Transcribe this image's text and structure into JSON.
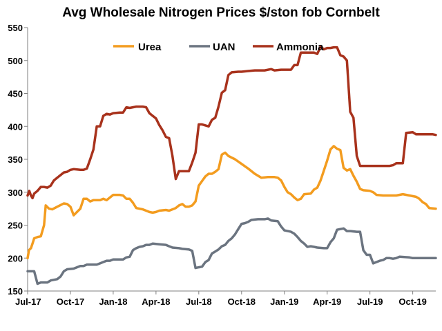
{
  "chart_data": {
    "type": "line",
    "title": "Avg Wholesale Nitrogen Prices $/ston fob Cornbelt",
    "xlabel": "",
    "ylabel": "",
    "ylim": [
      150,
      550
    ],
    "yticks": [
      150,
      200,
      250,
      300,
      350,
      400,
      450,
      500,
      550
    ],
    "xticks": [
      "Jul-17",
      "Oct-17",
      "Jan-18",
      "Apr-18",
      "Jul-18",
      "Oct-18",
      "Jan-19",
      "Apr-19",
      "Jul-19",
      "Oct-19"
    ],
    "grid": false,
    "legend": "top-center",
    "series": [
      {
        "name": "Urea",
        "color": "#f39c1f",
        "points": [
          [
            0,
            200
          ],
          [
            0.4,
            212
          ],
          [
            1,
            215
          ],
          [
            1.5,
            222
          ],
          [
            2,
            230
          ],
          [
            3,
            232
          ],
          [
            4,
            233
          ],
          [
            5,
            250
          ],
          [
            5.5,
            280
          ],
          [
            6.5,
            275
          ],
          [
            7.5,
            274
          ],
          [
            9,
            278
          ],
          [
            11,
            283
          ],
          [
            12,
            282
          ],
          [
            13,
            278
          ],
          [
            14,
            265
          ],
          [
            15,
            270
          ],
          [
            16,
            275
          ],
          [
            17,
            290
          ],
          [
            18,
            290
          ],
          [
            19,
            286
          ],
          [
            20,
            288
          ],
          [
            22,
            288
          ],
          [
            23,
            290
          ],
          [
            24,
            288
          ],
          [
            25,
            292
          ],
          [
            26,
            296
          ],
          [
            28,
            296
          ],
          [
            29,
            295
          ],
          [
            30,
            290
          ],
          [
            31,
            290
          ],
          [
            32,
            284
          ],
          [
            33,
            276
          ],
          [
            35,
            274
          ],
          [
            37,
            270
          ],
          [
            38,
            269
          ],
          [
            39,
            270
          ],
          [
            40,
            272
          ],
          [
            42,
            273
          ],
          [
            43,
            272
          ],
          [
            44,
            274
          ],
          [
            45,
            276
          ],
          [
            46,
            280
          ],
          [
            47,
            282
          ],
          [
            48,
            278
          ],
          [
            49,
            278
          ],
          [
            50,
            280
          ],
          [
            51,
            286
          ],
          [
            52,
            310
          ],
          [
            53,
            317
          ],
          [
            54,
            324
          ],
          [
            55,
            328
          ],
          [
            56,
            328
          ],
          [
            57,
            331
          ],
          [
            58,
            335
          ],
          [
            59,
            357
          ],
          [
            60,
            360
          ],
          [
            61,
            355
          ],
          [
            63,
            350
          ],
          [
            65,
            343
          ],
          [
            67,
            336
          ],
          [
            69,
            328
          ],
          [
            71,
            322
          ],
          [
            73,
            323
          ],
          [
            75,
            323
          ],
          [
            76,
            322
          ],
          [
            77,
            318
          ],
          [
            78,
            308
          ],
          [
            79,
            300
          ],
          [
            80,
            297
          ],
          [
            81,
            292
          ],
          [
            82,
            288
          ],
          [
            83,
            290
          ],
          [
            84,
            297
          ],
          [
            86,
            298
          ],
          [
            87,
            304
          ],
          [
            88,
            307
          ],
          [
            89,
            318
          ],
          [
            90,
            333
          ],
          [
            91,
            348
          ],
          [
            92,
            365
          ],
          [
            93,
            370
          ],
          [
            94,
            366
          ],
          [
            95,
            364
          ],
          [
            96,
            337
          ],
          [
            97,
            333
          ],
          [
            98,
            335
          ],
          [
            99,
            325
          ],
          [
            100,
            316
          ],
          [
            101,
            305
          ],
          [
            102,
            303
          ],
          [
            104,
            302
          ],
          [
            105,
            300
          ],
          [
            106,
            296
          ],
          [
            108,
            295
          ],
          [
            112,
            295
          ],
          [
            114,
            297
          ],
          [
            116,
            295
          ],
          [
            118,
            293
          ],
          [
            119,
            290
          ],
          [
            120,
            285
          ],
          [
            121,
            282
          ],
          [
            122,
            276
          ],
          [
            124,
            275
          ]
        ]
      },
      {
        "name": "UAN",
        "color": "#6b7480",
        "points": [
          [
            0,
            180
          ],
          [
            2,
            180
          ],
          [
            3,
            161
          ],
          [
            4,
            163
          ],
          [
            6,
            163
          ],
          [
            7,
            166
          ],
          [
            9,
            168
          ],
          [
            10,
            172
          ],
          [
            11,
            180
          ],
          [
            12,
            183
          ],
          [
            14,
            184
          ],
          [
            16,
            188
          ],
          [
            17,
            188
          ],
          [
            18,
            190
          ],
          [
            21,
            190
          ],
          [
            22,
            192
          ],
          [
            23,
            194
          ],
          [
            24,
            196
          ],
          [
            25,
            196
          ],
          [
            26,
            198
          ],
          [
            29,
            198
          ],
          [
            30,
            201
          ],
          [
            31,
            202
          ],
          [
            32,
            212
          ],
          [
            33,
            215
          ],
          [
            34,
            217
          ],
          [
            35,
            218
          ],
          [
            36,
            220
          ],
          [
            37,
            220
          ],
          [
            38,
            222
          ],
          [
            40,
            221
          ],
          [
            42,
            220
          ],
          [
            43,
            218
          ],
          [
            44,
            216
          ],
          [
            46,
            215
          ],
          [
            47,
            214
          ],
          [
            49,
            213
          ],
          [
            50,
            211
          ],
          [
            51,
            185
          ],
          [
            52,
            186
          ],
          [
            53,
            187
          ],
          [
            54,
            194
          ],
          [
            55,
            197
          ],
          [
            56,
            207
          ],
          [
            57,
            210
          ],
          [
            58,
            213
          ],
          [
            59,
            218
          ],
          [
            60,
            220
          ],
          [
            61,
            226
          ],
          [
            62,
            230
          ],
          [
            63,
            236
          ],
          [
            64,
            244
          ],
          [
            65,
            252
          ],
          [
            66,
            253
          ],
          [
            67,
            255
          ],
          [
            68,
            258
          ],
          [
            70,
            259
          ],
          [
            72,
            259
          ],
          [
            73,
            260
          ],
          [
            74,
            257
          ],
          [
            76,
            256
          ],
          [
            77,
            248
          ],
          [
            78,
            242
          ],
          [
            80,
            240
          ],
          [
            81,
            237
          ],
          [
            82,
            232
          ],
          [
            83,
            226
          ],
          [
            84,
            222
          ],
          [
            85,
            217
          ],
          [
            86,
            218
          ],
          [
            87,
            217
          ],
          [
            88,
            216
          ],
          [
            90,
            215
          ],
          [
            91,
            215
          ],
          [
            92,
            224
          ],
          [
            93,
            230
          ],
          [
            94,
            243
          ],
          [
            95,
            244
          ],
          [
            96,
            245
          ],
          [
            97,
            241
          ],
          [
            98,
            241
          ],
          [
            100,
            240
          ],
          [
            101,
            240
          ],
          [
            102,
            212
          ],
          [
            103,
            205
          ],
          [
            104,
            205
          ],
          [
            105,
            192
          ],
          [
            106,
            194
          ],
          [
            107,
            196
          ],
          [
            108,
            197
          ],
          [
            109,
            200
          ],
          [
            110,
            200
          ],
          [
            111,
            199
          ],
          [
            112,
            200
          ],
          [
            113,
            202
          ],
          [
            116,
            201
          ],
          [
            117,
            200
          ],
          [
            124,
            200
          ]
        ]
      },
      {
        "name": "Ammonia",
        "color": "#a8321c",
        "points": [
          [
            0,
            295
          ],
          [
            0.5,
            302
          ],
          [
            1,
            295
          ],
          [
            1.5,
            291
          ],
          [
            2,
            298
          ],
          [
            3,
            302
          ],
          [
            4,
            308
          ],
          [
            5,
            308
          ],
          [
            6,
            307
          ],
          [
            7,
            310
          ],
          [
            8,
            318
          ],
          [
            9,
            322
          ],
          [
            10,
            326
          ],
          [
            11,
            330
          ],
          [
            12,
            331
          ],
          [
            13,
            334
          ],
          [
            14,
            335
          ],
          [
            16,
            334
          ],
          [
            17,
            334
          ],
          [
            18,
            336
          ],
          [
            19,
            350
          ],
          [
            20,
            365
          ],
          [
            21,
            400
          ],
          [
            22,
            400
          ],
          [
            23,
            416
          ],
          [
            24,
            419
          ],
          [
            25,
            418
          ],
          [
            26,
            420
          ],
          [
            28,
            421
          ],
          [
            29,
            421
          ],
          [
            30,
            429
          ],
          [
            31,
            428
          ],
          [
            33,
            430
          ],
          [
            35,
            430
          ],
          [
            36,
            429
          ],
          [
            37,
            420
          ],
          [
            38,
            416
          ],
          [
            39,
            412
          ],
          [
            40,
            402
          ],
          [
            41,
            394
          ],
          [
            42,
            384
          ],
          [
            43,
            382
          ],
          [
            44,
            355
          ],
          [
            45,
            320
          ],
          [
            46,
            332
          ],
          [
            48,
            332
          ],
          [
            49,
            332
          ],
          [
            50,
            345
          ],
          [
            51,
            360
          ],
          [
            52,
            403
          ],
          [
            53,
            403
          ],
          [
            55,
            400
          ],
          [
            56,
            410
          ],
          [
            57,
            413
          ],
          [
            58,
            430
          ],
          [
            59,
            451
          ],
          [
            60,
            455
          ],
          [
            61,
            478
          ],
          [
            62,
            482
          ],
          [
            64,
            483
          ],
          [
            65,
            483
          ],
          [
            67,
            484
          ],
          [
            69,
            485
          ],
          [
            72,
            485
          ],
          [
            74,
            487
          ],
          [
            75,
            485
          ],
          [
            77,
            486
          ],
          [
            78,
            486
          ],
          [
            80,
            486
          ],
          [
            81,
            493
          ],
          [
            82,
            493
          ],
          [
            83,
            512
          ],
          [
            85,
            512
          ],
          [
            87,
            512
          ],
          [
            88,
            510
          ],
          [
            89,
            521
          ],
          [
            90,
            517
          ],
          [
            91,
            519
          ],
          [
            92,
            519
          ],
          [
            93,
            520
          ],
          [
            94,
            520
          ],
          [
            95,
            508
          ],
          [
            96,
            506
          ],
          [
            97,
            500
          ],
          [
            98,
            422
          ],
          [
            99,
            413
          ],
          [
            100,
            355
          ],
          [
            101,
            340
          ],
          [
            102,
            340
          ],
          [
            110,
            340
          ],
          [
            111,
            341
          ],
          [
            112,
            344
          ],
          [
            114,
            344
          ],
          [
            115,
            390
          ],
          [
            117,
            391
          ],
          [
            118,
            388
          ],
          [
            120,
            388
          ],
          [
            123,
            388
          ],
          [
            124,
            387
          ]
        ]
      }
    ]
  }
}
